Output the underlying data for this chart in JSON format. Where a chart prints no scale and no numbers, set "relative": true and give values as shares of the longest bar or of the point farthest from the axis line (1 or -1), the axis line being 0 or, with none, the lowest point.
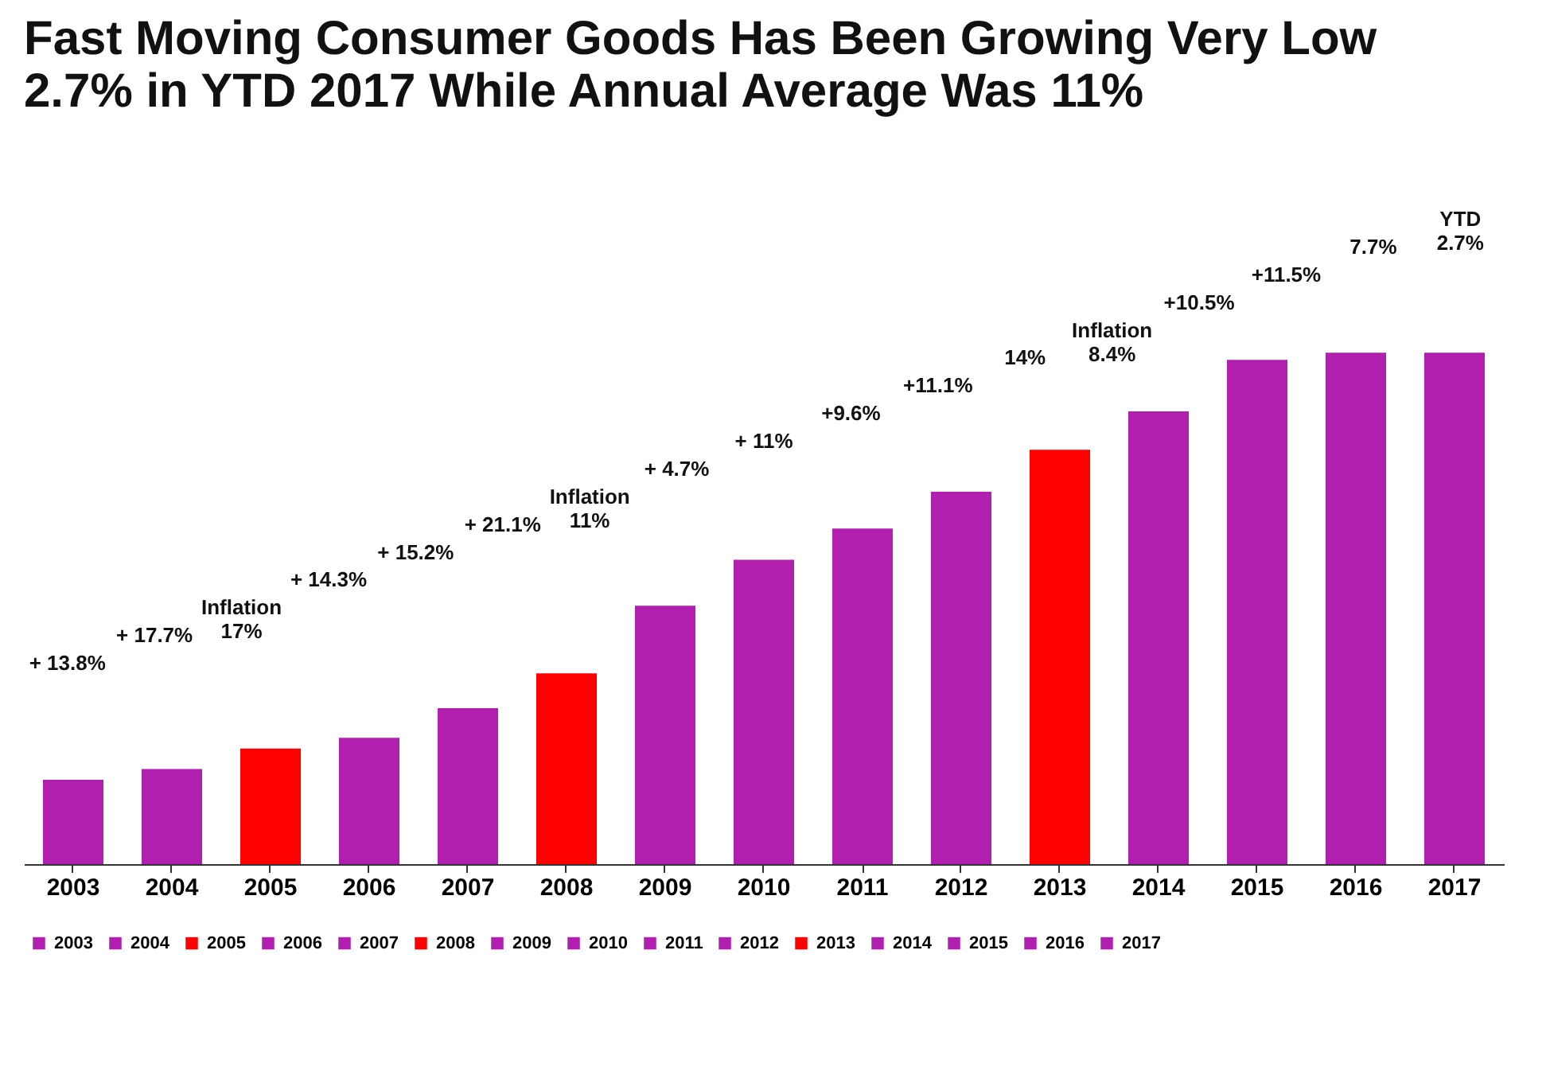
{
  "chart_data": {
    "type": "bar",
    "title": "Fast Moving Consumer Goods Has Been Growing Very Low",
    "subtitle": "2.7% in YTD 2017 While Annual Average Was 11%",
    "categories": [
      "2003",
      "2004",
      "2005",
      "2006",
      "2007",
      "2008",
      "2009",
      "2010",
      "2011",
      "2012",
      "2013",
      "2014",
      "2015",
      "2016",
      "2017"
    ],
    "series": [
      {
        "name": "2003",
        "color": "#b01fae",
        "values": [
          0.165,
          null,
          null,
          null,
          null,
          null,
          null,
          null,
          null,
          null,
          null,
          null,
          null,
          null,
          null
        ]
      },
      {
        "name": "2004",
        "color": "#b01fae",
        "values": [
          null,
          0.186,
          null,
          null,
          null,
          null,
          null,
          null,
          null,
          null,
          null,
          null,
          null,
          null,
          null
        ]
      },
      {
        "name": "2005",
        "color": "#ff0000",
        "values": [
          null,
          null,
          0.226,
          null,
          null,
          null,
          null,
          null,
          null,
          null,
          null,
          null,
          null,
          null,
          null
        ]
      },
      {
        "name": "2006",
        "color": "#b01fae",
        "values": [
          null,
          null,
          null,
          0.247,
          null,
          null,
          null,
          null,
          null,
          null,
          null,
          null,
          null,
          null,
          null
        ]
      },
      {
        "name": "2007",
        "color": "#b01fae",
        "values": [
          null,
          null,
          null,
          null,
          0.305,
          null,
          null,
          null,
          null,
          null,
          null,
          null,
          null,
          null,
          null
        ]
      },
      {
        "name": "2008",
        "color": "#ff0000",
        "values": [
          null,
          null,
          null,
          null,
          null,
          0.373,
          null,
          null,
          null,
          null,
          null,
          null,
          null,
          null,
          null
        ]
      },
      {
        "name": "2009",
        "color": "#b01fae",
        "values": [
          null,
          null,
          null,
          null,
          null,
          null,
          0.505,
          null,
          null,
          null,
          null,
          null,
          null,
          null,
          null
        ]
      },
      {
        "name": "2010",
        "color": "#b01fae",
        "values": [
          null,
          null,
          null,
          null,
          null,
          null,
          null,
          0.595,
          null,
          null,
          null,
          null,
          null,
          null,
          null
        ]
      },
      {
        "name": "2011",
        "color": "#b01fae",
        "values": [
          null,
          null,
          null,
          null,
          null,
          null,
          null,
          null,
          0.656,
          null,
          null,
          null,
          null,
          null,
          null
        ]
      },
      {
        "name": "2012",
        "color": "#b01fae",
        "values": [
          null,
          null,
          null,
          null,
          null,
          null,
          null,
          null,
          null,
          0.728,
          null,
          null,
          null,
          null,
          null
        ]
      },
      {
        "name": "2013",
        "color": "#ff0000",
        "values": [
          null,
          null,
          null,
          null,
          null,
          null,
          null,
          null,
          null,
          null,
          0.81,
          null,
          null,
          null,
          null
        ]
      },
      {
        "name": "2014",
        "color": "#b01fae",
        "values": [
          null,
          null,
          null,
          null,
          null,
          null,
          null,
          null,
          null,
          null,
          null,
          0.885,
          null,
          null,
          null
        ]
      },
      {
        "name": "2015",
        "color": "#b01fae",
        "values": [
          null,
          null,
          null,
          null,
          null,
          null,
          null,
          null,
          null,
          null,
          null,
          null,
          0.986,
          null,
          null
        ]
      },
      {
        "name": "2016",
        "color": "#b01fae",
        "values": [
          null,
          null,
          null,
          null,
          null,
          null,
          null,
          null,
          null,
          null,
          null,
          null,
          null,
          1,
          null
        ]
      },
      {
        "name": "2017",
        "color": "#b01fae",
        "values": [
          null,
          null,
          null,
          null,
          null,
          null,
          null,
          null,
          null,
          null,
          null,
          null,
          null,
          null,
          1
        ]
      }
    ],
    "stacked": true,
    "relative": true,
    "legend": "bottom",
    "grid": false,
    "annotations": [
      "+ 13.8%",
      "+ 17.7%",
      "Inflation\n17%",
      "+ 14.3%",
      "+ 15.2%",
      "+ 21.1%",
      "Inflation\n11%",
      "+ 4.7%",
      "+ 11%",
      "+9.6%",
      "+11.1%",
      "14%",
      "Inflation\n8.4%",
      "+10.5%",
      "+11.5%",
      "7.7%",
      "YTD\n2.7%"
    ]
  }
}
